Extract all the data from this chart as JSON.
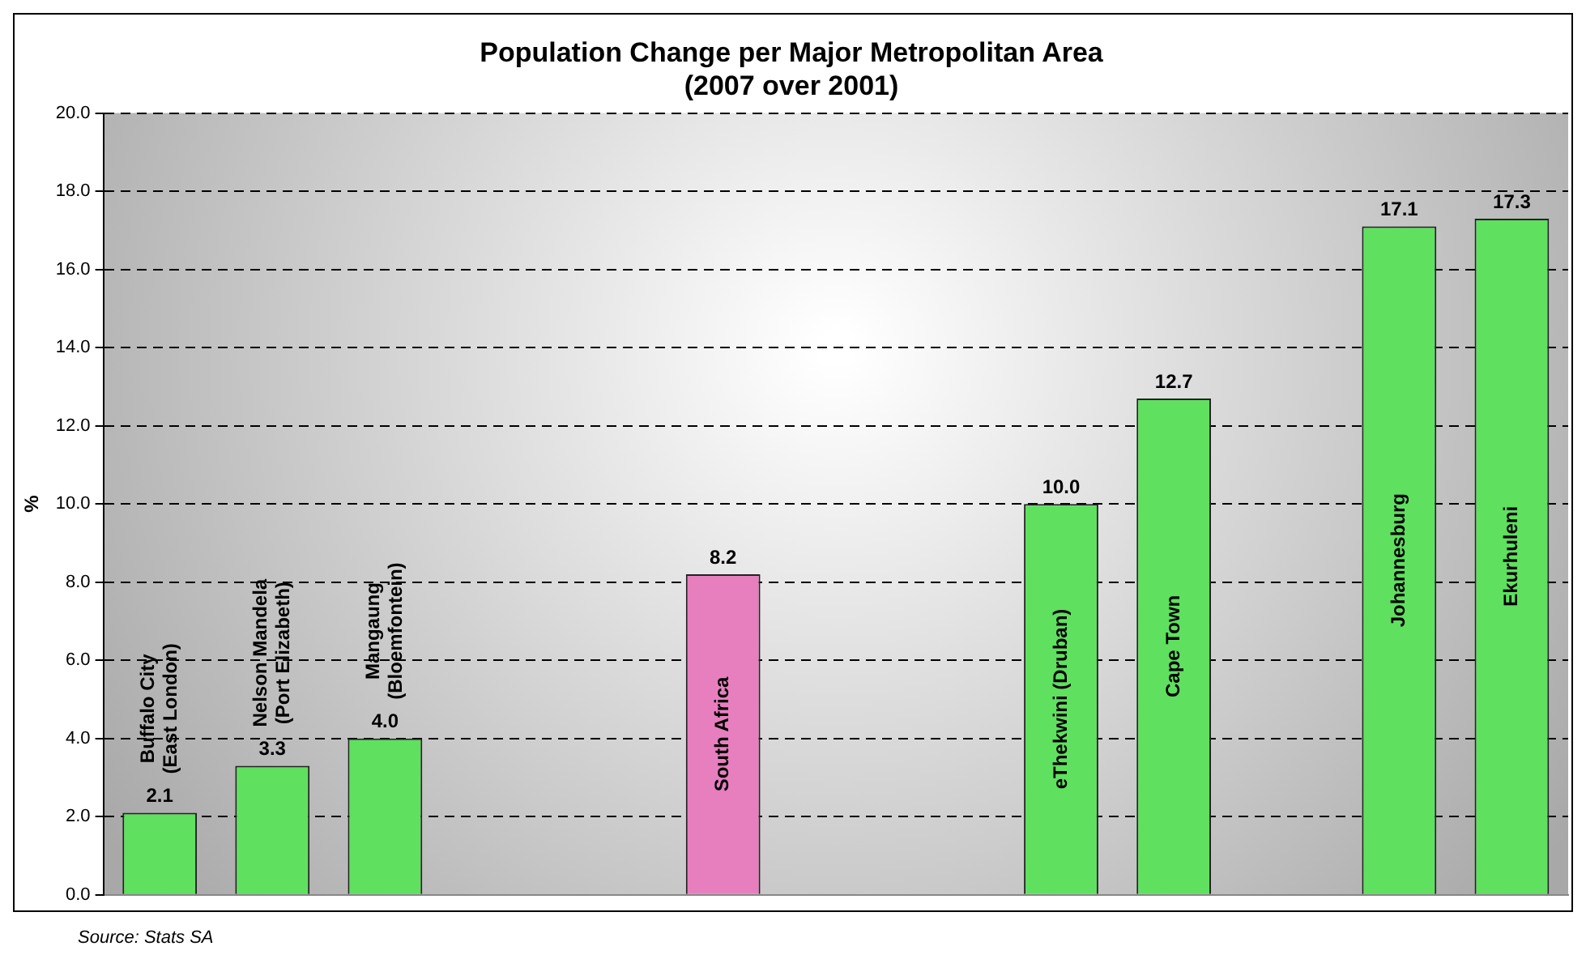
{
  "chart_data": {
    "type": "bar",
    "title": "Population Change per Major Metropolitan Area\n(2007 over 2001)",
    "ylabel": "%",
    "categories": [
      "Buffalo City\n(East London)",
      "Nelson Mandela\n(Port Elizabeth)",
      "Mangaung\n(Bloemfontein)",
      null,
      null,
      "South Africa",
      null,
      null,
      "eThekwini (Druban)",
      "Cape Town",
      null,
      "Johannesburg",
      "Ekurhuleni"
    ],
    "values": [
      2.1,
      3.3,
      4.0,
      null,
      null,
      8.2,
      null,
      null,
      10.0,
      12.7,
      null,
      17.1,
      17.3
    ],
    "value_labels": [
      "2.1",
      "3.3",
      "4.0",
      null,
      null,
      "8.2",
      null,
      null,
      "10.0",
      "12.7",
      null,
      "17.1",
      "17.3"
    ],
    "colors": [
      "#5fe05f",
      "#5fe05f",
      "#5fe05f",
      "#5fe05f",
      "#5fe05f",
      "#e77fbf",
      "#5fe05f",
      "#5fe05f",
      "#5fe05f",
      "#5fe05f",
      "#5fe05f",
      "#5fe05f",
      "#5fe05f"
    ],
    "ylim": [
      0,
      20
    ],
    "yticks": [
      {
        "value": 0,
        "label": "0.0"
      },
      {
        "value": 2,
        "label": "2.0"
      },
      {
        "value": 4,
        "label": "4.0"
      },
      {
        "value": 6,
        "label": "6.0"
      },
      {
        "value": 8,
        "label": "8.0"
      },
      {
        "value": 10,
        "label": "10.0"
      },
      {
        "value": 12,
        "label": "12.0"
      },
      {
        "value": 14,
        "label": "14.0"
      },
      {
        "value": 16,
        "label": "16.0"
      },
      {
        "value": 18,
        "label": "18.0"
      },
      {
        "value": 20,
        "label": "20.0"
      }
    ],
    "grid": "y",
    "legend": false,
    "tick_labels": "y",
    "annotations": [
      "Source: Stats SA"
    ]
  }
}
